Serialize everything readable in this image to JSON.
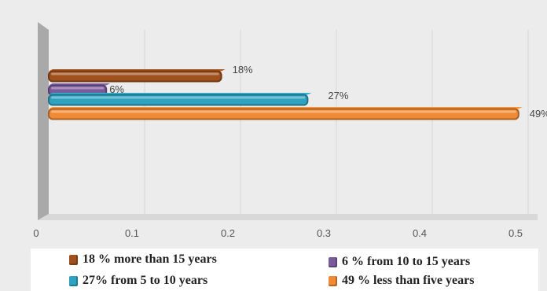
{
  "chart_data": {
    "type": "bar",
    "orientation": "horizontal",
    "style": "3d",
    "x_ticks": [
      "0",
      "0.1",
      "0.2",
      "0.3",
      "0.4",
      "0.5"
    ],
    "xlim": [
      0,
      0.5
    ],
    "grid": true,
    "legend_position": "bottom",
    "series": [
      {
        "name": "18 %  more than 15 years",
        "value": 0.18,
        "data_label": "18%",
        "color": "#a0501c"
      },
      {
        "name": "6 % from 10 to 15 years",
        "value": 0.06,
        "data_label": "6%",
        "color": "#7a5a9a"
      },
      {
        "name": "27% from 5 to 10 years",
        "value": 0.27,
        "data_label": "27%",
        "color": "#2ea3c1"
      },
      {
        "name": "49 % less than five years",
        "value": 0.49,
        "data_label": "49%",
        "color": "#f08a34"
      }
    ]
  }
}
